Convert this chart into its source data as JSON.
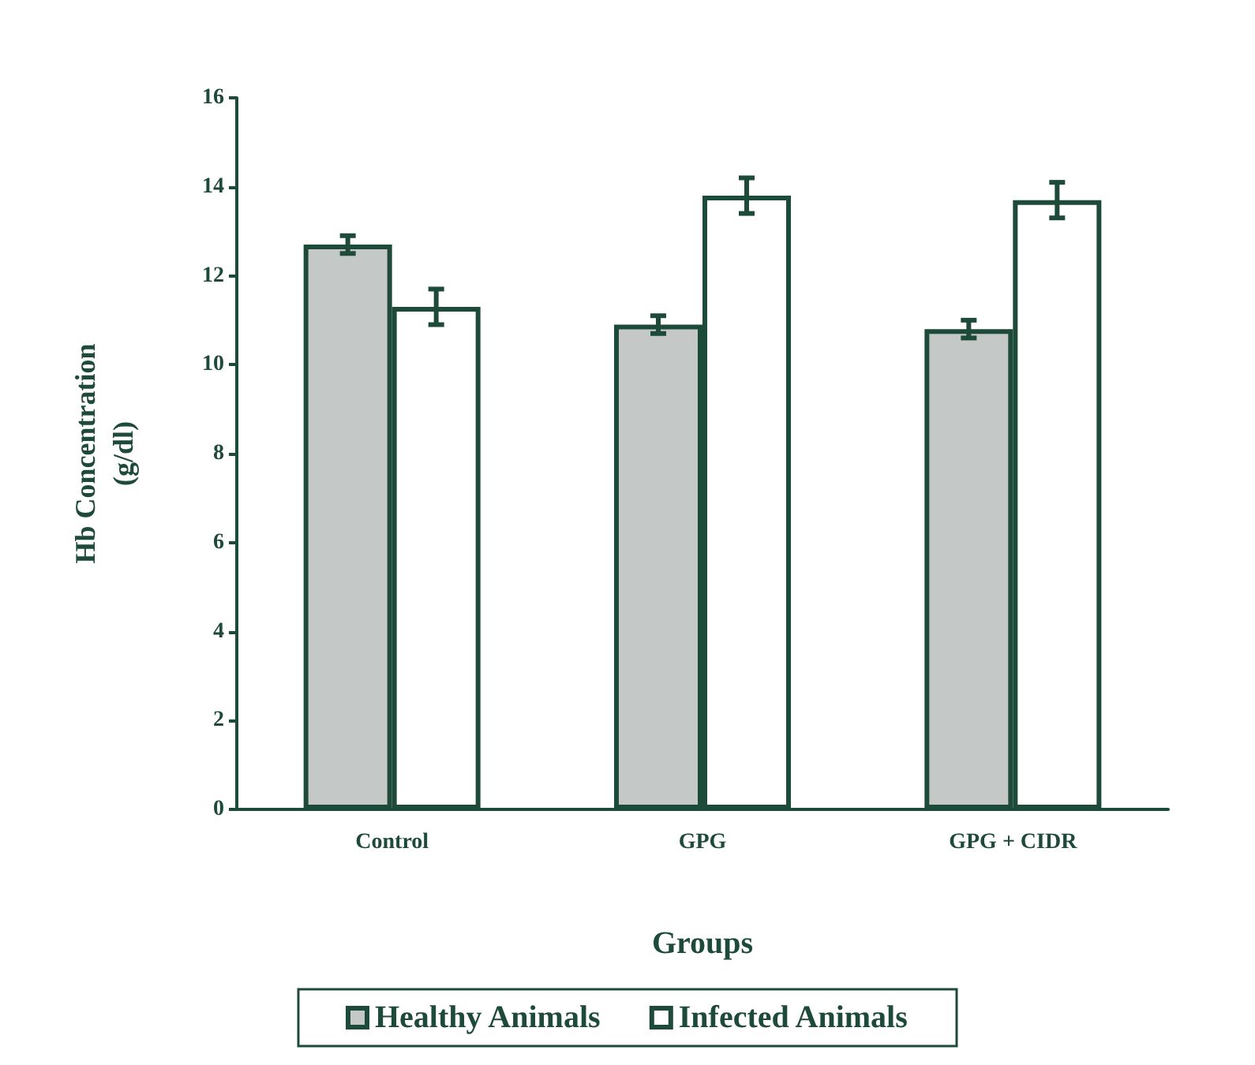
{
  "chart_data": {
    "type": "bar",
    "xlabel": "Groups",
    "ylabel": "Hb Concentration\n(g/dl)",
    "categories": [
      "Control",
      "GPG",
      "GPG + CIDR"
    ],
    "series": [
      {
        "name": "Healthy Animals",
        "color": "#c4c8c6",
        "values": [
          12.7,
          10.9,
          10.8
        ],
        "errors": [
          0.2,
          0.2,
          0.2
        ]
      },
      {
        "name": "Infected Animals",
        "color": "#ffffff",
        "values": [
          11.3,
          13.8,
          13.7
        ],
        "errors": [
          0.4,
          0.4,
          0.4
        ]
      }
    ],
    "ylim": [
      0,
      16
    ],
    "yticks": [
      0,
      2,
      4,
      6,
      8,
      10,
      12,
      14,
      16
    ],
    "grid": false,
    "legend": "bottom"
  }
}
